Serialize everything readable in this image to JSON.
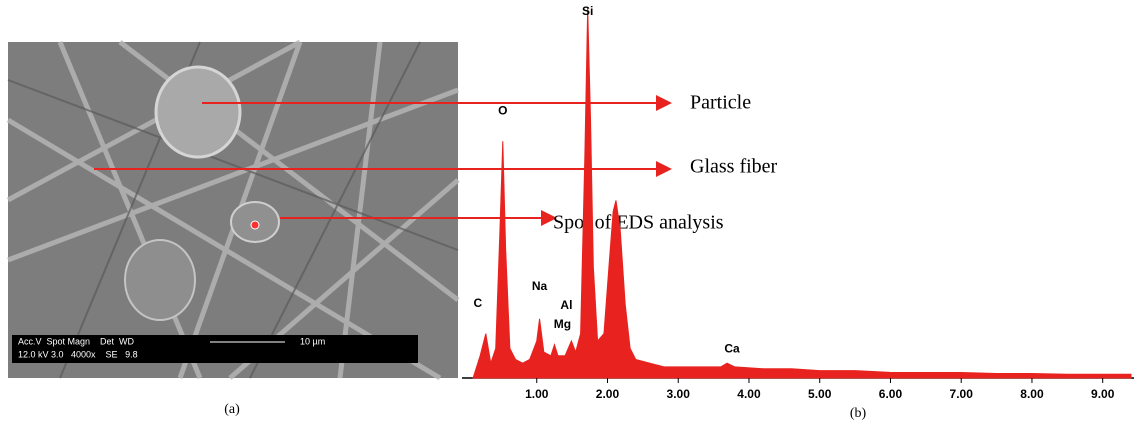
{
  "figure_a": {
    "caption": "(a)",
    "info_bar": {
      "header": "Acc.V  Spot Magn    Det  WD",
      "values": "12.0 kV 3.0   4000x    SE   9.8",
      "scale": "10 µm"
    },
    "callouts": [
      "Particle",
      "Glass fiber",
      "Spot of EDS analysis"
    ]
  },
  "chart_data": {
    "type": "area",
    "caption": "(b)",
    "x": [
      0.1,
      0.2,
      0.28,
      0.35,
      0.42,
      0.48,
      0.52,
      0.56,
      0.62,
      0.7,
      0.8,
      0.9,
      1.0,
      1.04,
      1.1,
      1.2,
      1.25,
      1.3,
      1.4,
      1.49,
      1.55,
      1.62,
      1.68,
      1.72,
      1.76,
      1.8,
      1.86,
      1.95,
      2.02,
      2.08,
      2.12,
      2.18,
      2.25,
      2.32,
      2.4,
      2.6,
      2.8,
      3.0,
      3.3,
      3.6,
      3.69,
      3.8,
      4.2,
      4.6,
      5.0,
      5.5,
      6.0,
      6.5,
      7.0,
      7.5,
      8.0,
      8.5,
      9.0,
      9.4
    ],
    "series": [
      {
        "color": "#e8231f",
        "values": [
          0,
          6,
          12,
          4,
          8,
          40,
          64,
          35,
          8,
          5,
          4,
          5,
          10,
          16,
          7,
          6,
          9,
          6,
          6,
          10,
          7,
          12,
          60,
          100,
          70,
          30,
          10,
          12,
          30,
          45,
          48,
          40,
          20,
          8,
          5,
          4,
          3,
          3,
          3,
          3,
          4,
          3,
          2.5,
          2.5,
          2,
          2,
          1.5,
          1.5,
          1.5,
          1.2,
          1.2,
          1,
          1,
          1
        ]
      }
    ],
    "peak_labels": [
      {
        "text": "O",
        "x": 0.52
      },
      {
        "text": "Si",
        "x": 1.72
      },
      {
        "text": "C",
        "x": 0.28
      },
      {
        "text": "Na",
        "x": 1.04
      },
      {
        "text": "Mg",
        "x": 1.25
      },
      {
        "text": "Al",
        "x": 1.49
      },
      {
        "text": "Ca",
        "x": 3.69
      }
    ],
    "xlim": [
      0,
      9.4
    ],
    "ylim": [
      0,
      100
    ],
    "xticks": [
      {
        "value": 1,
        "label": "1.00"
      },
      {
        "value": 2,
        "label": "2.00"
      },
      {
        "value": 3,
        "label": "3.00"
      },
      {
        "value": 4,
        "label": "4.00"
      },
      {
        "value": 5,
        "label": "5.00"
      },
      {
        "value": 6,
        "label": "6.00"
      },
      {
        "value": 7,
        "label": "7.00"
      },
      {
        "value": 8,
        "label": "8.00"
      },
      {
        "value": 9,
        "label": "9.00"
      }
    ]
  }
}
